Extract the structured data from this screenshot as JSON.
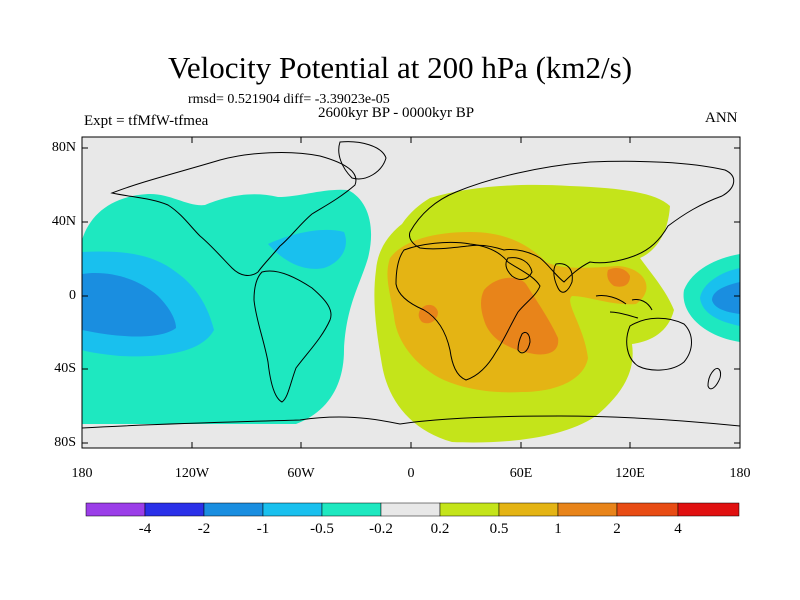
{
  "title": "Velocity Potential at 200 hPa (km2/s)",
  "stats": "rmsd= 0.521904 diff= -3.39023e-05",
  "period": "2600kyr BP - 0000kyr BP",
  "experiment": "Expt = tfMfW-tfmea",
  "season": "ANN",
  "lat_labels": [
    "80N",
    "40N",
    "0",
    "40S",
    "80S"
  ],
  "lon_labels": [
    "180",
    "120W",
    "60W",
    "0",
    "60E",
    "120E",
    "180"
  ],
  "colorbar": {
    "colors": [
      "#9b3ee8",
      "#2a30e8",
      "#1a8ee0",
      "#19c0ee",
      "#1ee8c0",
      "#e8e8e8",
      "#c4e41a",
      "#e4b414",
      "#e8841a",
      "#e84c14",
      "#e01010"
    ],
    "labels": [
      "-4",
      "-2",
      "-1",
      "-0.5",
      "-0.2",
      "0.2",
      "0.5",
      "1",
      "2",
      "4"
    ]
  },
  "map_colors": {
    "land_ocean": "#e8e8e8",
    "neg_weak": "#1ee8c0",
    "neg_mid": "#19c0ee",
    "neg_strong": "#1a8ee0",
    "pos_weak": "#c4e41a",
    "pos_mid": "#e4b414",
    "pos_strong": "#e8841a",
    "coast": "#000000"
  }
}
